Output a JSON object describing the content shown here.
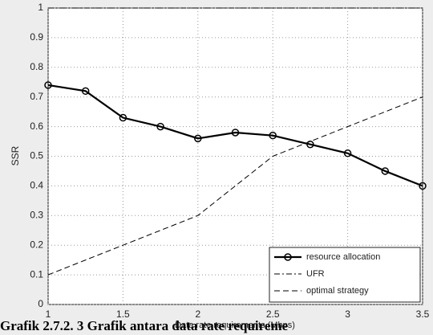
{
  "chart_data": {
    "type": "line",
    "ylabel": "SSR",
    "xlabel": "Data rate requirements (Mbps)",
    "caption": "Grafik 2.7.2. 3 Grafik antara data rate requireme",
    "xlim": [
      1,
      3.5
    ],
    "xticks": [
      1,
      1.5,
      2,
      2.5,
      3,
      3.5
    ],
    "ylim": [
      0,
      1
    ],
    "yticks": [
      0,
      0.1,
      0.2,
      0.3,
      0.4,
      0.5,
      0.6,
      0.7,
      0.8,
      0.9,
      1
    ],
    "grid": true,
    "legend": "lower right",
    "series": [
      {
        "name": "resource allocation",
        "color": "#000000",
        "style": "solid",
        "marker": "circle",
        "x": [
          1,
          1.25,
          1.5,
          1.75,
          2,
          2.25,
          2.5,
          2.75,
          3,
          3.25,
          3.5
        ],
        "values": [
          0.74,
          0.72,
          0.63,
          0.6,
          0.56,
          0.58,
          0.57,
          0.54,
          0.51,
          0.45,
          0.4
        ]
      },
      {
        "name": "UFR",
        "color": "#000000",
        "style": "dashdot",
        "x": [
          1,
          3.5
        ],
        "values": [
          1,
          1
        ]
      },
      {
        "name": "optimal strategy",
        "color": "#000000",
        "style": "dashed",
        "x": [
          1,
          1.5,
          2,
          2.5,
          3,
          3.5
        ],
        "values": [
          0.1,
          0.2,
          0.3,
          0.5,
          0.6,
          0.7
        ]
      }
    ]
  }
}
